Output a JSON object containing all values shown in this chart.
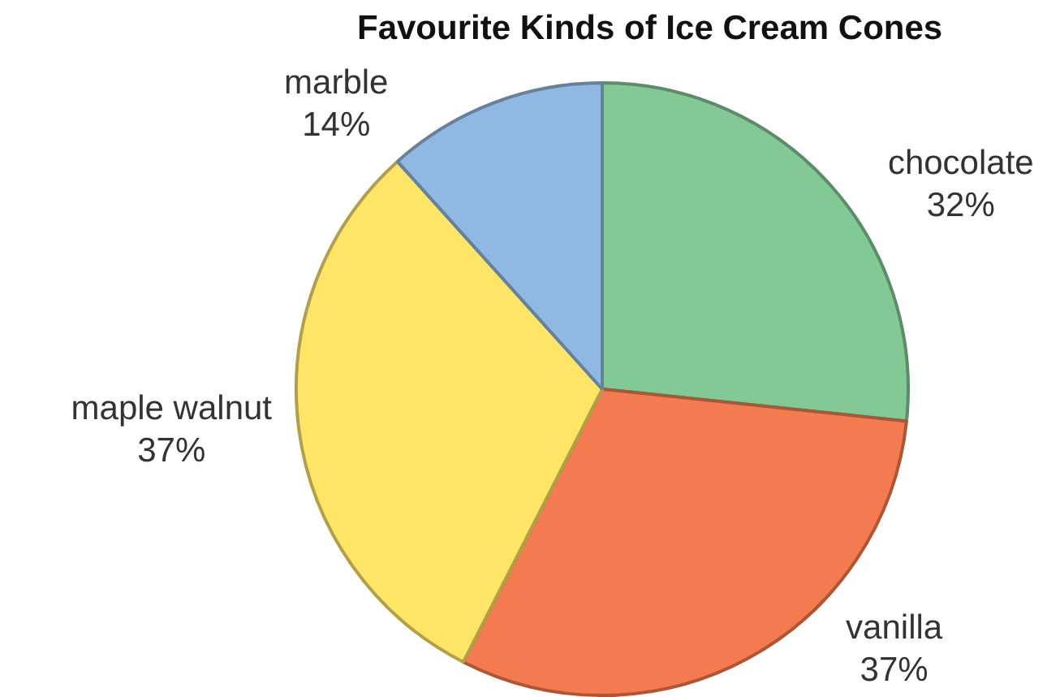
{
  "chart_data": {
    "type": "pie",
    "title": "Favourite Kinds of Ice Cream Cones",
    "categories": [
      "chocolate",
      "vanilla",
      "maple walnut",
      "marble"
    ],
    "values": [
      32,
      37,
      37,
      14
    ],
    "value_labels": [
      "32%",
      "37%",
      "37%",
      "14%"
    ],
    "colors": [
      "#82c995",
      "#f47b4f",
      "#fee566",
      "#8fb8e2"
    ],
    "legend": false
  }
}
